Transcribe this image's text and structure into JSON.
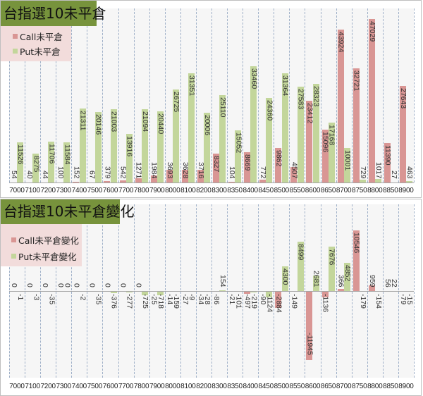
{
  "charts": [
    {
      "title": "台指選10未平倉",
      "legend": [
        {
          "label": "Call未平倉",
          "color": "#d99694"
        },
        {
          "label": "Put未平倉",
          "color": "#c3d69b"
        }
      ]
    },
    {
      "title": "台指選10未平倉變化",
      "legend": [
        {
          "label": "Call未平倉變化",
          "color": "#d99694"
        },
        {
          "label": "Put未平倉變化",
          "color": "#c3d69b"
        }
      ]
    }
  ],
  "colors": {
    "call": "#d99694",
    "put": "#c3d69b",
    "title_banner": "#77933c",
    "legend_bg": "#f2dcdb"
  },
  "chart_data": [
    {
      "type": "bar",
      "title": "台指選10未平倉",
      "xlabel": "",
      "ylabel": "",
      "ylim": [
        0,
        50000
      ],
      "grid": "vertical dashed lines at category boundaries",
      "legend_position": "top-left",
      "data_labels": true,
      "categories": [
        "7000",
        "7100",
        "7200",
        "7300",
        "7400",
        "7500",
        "7600",
        "7700",
        "7800",
        "7900",
        "8000",
        "8100",
        "8200",
        "8300",
        "8350",
        "8400",
        "8450",
        "8500",
        "8550",
        "8600",
        "8650",
        "8700",
        "8750",
        "8800",
        "8850",
        "8900"
      ],
      "series": [
        {
          "name": "Call未平倉",
          "color": "#d99694",
          "values": [
            54,
            40,
            44,
            100,
            152,
            67,
            379,
            542,
            1271,
            1984,
            3693,
            3628,
            3716,
            8327,
            104,
            8669,
            772,
            9862,
            4507,
            23412,
            15096,
            43924,
            32721,
            47029,
            11390,
            27643
          ]
        },
        {
          "name": "Put未平倉",
          "color": "#c3d69b",
          "values": [
            11526,
            8275,
            11706,
            11584,
            21311,
            20146,
            21003,
            13916,
            21094,
            20440,
            26725,
            31351,
            20006,
            25110,
            15052,
            33460,
            24360,
            31364,
            27583,
            28323,
            17168,
            10001,
            729,
            1017,
            27,
            463
          ]
        }
      ]
    },
    {
      "type": "bar",
      "title": "台指選10未平倉變化",
      "xlabel": "",
      "ylabel": "",
      "ylim": [
        -15000,
        15000
      ],
      "grid": "vertical dashed lines at category boundaries",
      "legend_position": "top-left",
      "data_labels": true,
      "categories": [
        "7000",
        "7100",
        "7200",
        "7300",
        "7400",
        "7500",
        "7600",
        "7700",
        "7800",
        "7900",
        "8000",
        "8100",
        "8200",
        "8300",
        "8350",
        "8400",
        "8450",
        "8500",
        "8550",
        "8600",
        "8650",
        "8700",
        "8750",
        "8800",
        "8850",
        "8900"
      ],
      "series": [
        {
          "name": "Call未平倉變化",
          "color": "#d99694",
          "values": [
            0,
            0,
            0,
            0,
            0,
            0,
            0,
            0,
            0,
            -25,
            -14,
            -27,
            -34,
            -86,
            -21,
            -497,
            -90,
            -2884,
            -149,
            -11945,
            -1136,
            366,
            10546,
            959,
            56,
            -79
          ]
        },
        {
          "name": "Put未平倉變化",
          "color": "#c3d69b",
          "values": [
            -1,
            -3,
            -35,
            0,
            -2,
            -35,
            -376,
            -277,
            -725,
            -718,
            -159,
            -9,
            -28,
            154,
            -101,
            -219,
            -1124,
            4300,
            8499,
            2681,
            7676,
            4852,
            -179,
            -154,
            22,
            -15
          ]
        }
      ]
    }
  ]
}
